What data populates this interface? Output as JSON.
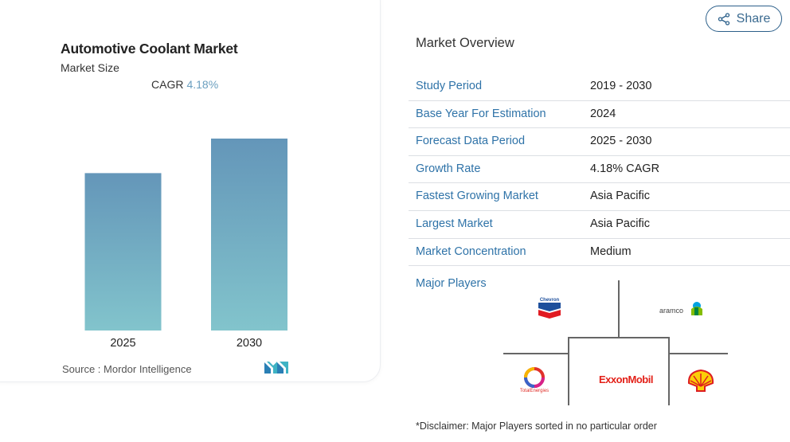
{
  "card": {
    "title": "Automotive Coolant Market",
    "subtitle": "Market Size",
    "cagr_label": "CAGR",
    "cagr_value": "4.18%",
    "source": "Source : Mordor Intelligence"
  },
  "chart_data": {
    "type": "bar",
    "categories": [
      "2025",
      "2030"
    ],
    "values": [
      0.82,
      1.0
    ],
    "title": "",
    "xlabel": "",
    "ylabel": "",
    "grid": false,
    "colors": {
      "top": "#6496b9",
      "bottom": "#82c4cc"
    }
  },
  "share": {
    "label": "Share",
    "icon": "share-icon"
  },
  "overview": {
    "title": "Market Overview",
    "rows": [
      {
        "label": "Study Period",
        "value": "2019 - 2030"
      },
      {
        "label": "Base Year For Estimation",
        "value": "2024"
      },
      {
        "label": "Forecast Data Period",
        "value": "2025 - 2030"
      },
      {
        "label": "Growth Rate",
        "value": "4.18% CAGR"
      },
      {
        "label": "Fastest Growing Market",
        "value": "Asia Pacific"
      },
      {
        "label": "Largest Market",
        "value": "Asia Pacific"
      },
      {
        "label": "Market Concentration",
        "value": "Medium"
      }
    ]
  },
  "major_players": {
    "label": "Major Players",
    "logos": {
      "chevron": "Chevron",
      "aramco": "aramco",
      "totalenergies": "TotalEnergies",
      "exxonmobil": "ExxonMobil",
      "shell": "shell-logo"
    }
  },
  "disclaimer": "*Disclaimer: Major Players sorted in no particular order",
  "colors": {
    "accent": "#2f73a8",
    "share_border": "#2b5f8a",
    "cagr": "#6a9fbf"
  }
}
